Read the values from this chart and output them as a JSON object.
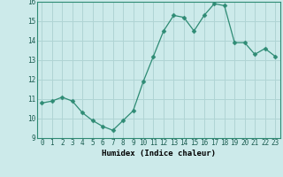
{
  "x": [
    0,
    1,
    2,
    3,
    4,
    5,
    6,
    7,
    8,
    9,
    10,
    11,
    12,
    13,
    14,
    15,
    16,
    17,
    18,
    19,
    20,
    21,
    22,
    23
  ],
  "y": [
    10.8,
    10.9,
    11.1,
    10.9,
    10.3,
    9.9,
    9.6,
    9.4,
    9.9,
    10.4,
    11.9,
    13.2,
    14.5,
    15.3,
    15.2,
    14.5,
    15.3,
    15.9,
    15.8,
    13.9,
    13.9,
    13.3,
    13.6,
    13.2
  ],
  "line_color": "#2e8b74",
  "marker": "D",
  "marker_size": 2.5,
  "bg_color": "#cceaea",
  "grid_color": "#b0d4d4",
  "xlabel": "Humidex (Indice chaleur)",
  "ylim": [
    9,
    16
  ],
  "xlim_min": -0.5,
  "xlim_max": 23.5,
  "yticks": [
    9,
    10,
    11,
    12,
    13,
    14,
    15,
    16
  ],
  "xticks": [
    0,
    1,
    2,
    3,
    4,
    5,
    6,
    7,
    8,
    9,
    10,
    11,
    12,
    13,
    14,
    15,
    16,
    17,
    18,
    19,
    20,
    21,
    22,
    23
  ],
  "xtick_labels": [
    "0",
    "1",
    "2",
    "3",
    "4",
    "5",
    "6",
    "7",
    "8",
    "9",
    "10",
    "11",
    "12",
    "13",
    "14",
    "15",
    "16",
    "17",
    "18",
    "19",
    "20",
    "21",
    "22",
    "23"
  ]
}
